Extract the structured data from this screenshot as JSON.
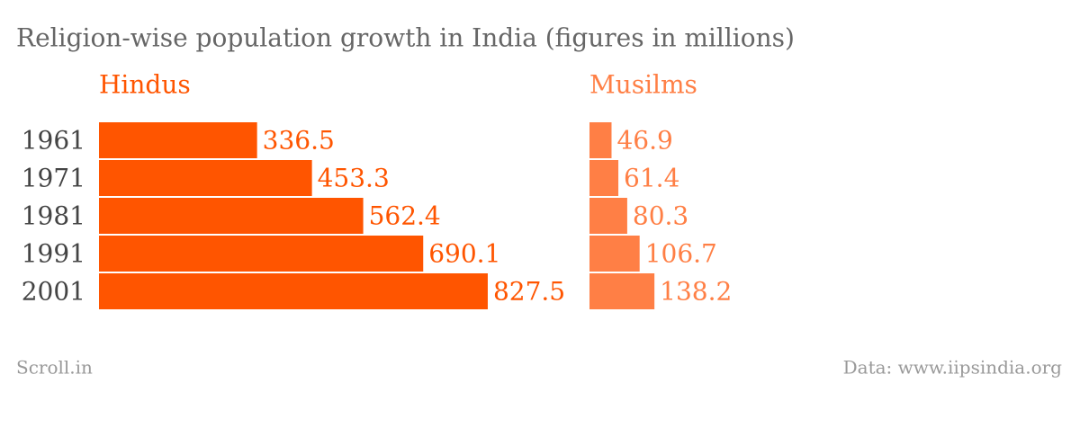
{
  "chart_data": {
    "type": "bar",
    "title": "Religion-wise population growth in India (figures in millions)",
    "categories": [
      "1961",
      "1971",
      "1981",
      "1991",
      "2001"
    ],
    "series": [
      {
        "name": "Hindus",
        "color": "#ff5500",
        "values": [
          336.5,
          453.3,
          562.4,
          690.1,
          827.5
        ]
      },
      {
        "name": "Musilms",
        "color": "#ff7f45",
        "values": [
          46.9,
          61.4,
          80.3,
          106.7,
          138.2
        ]
      }
    ],
    "source": "Scroll.in",
    "credit": "Data: www.iipsindia.org"
  }
}
